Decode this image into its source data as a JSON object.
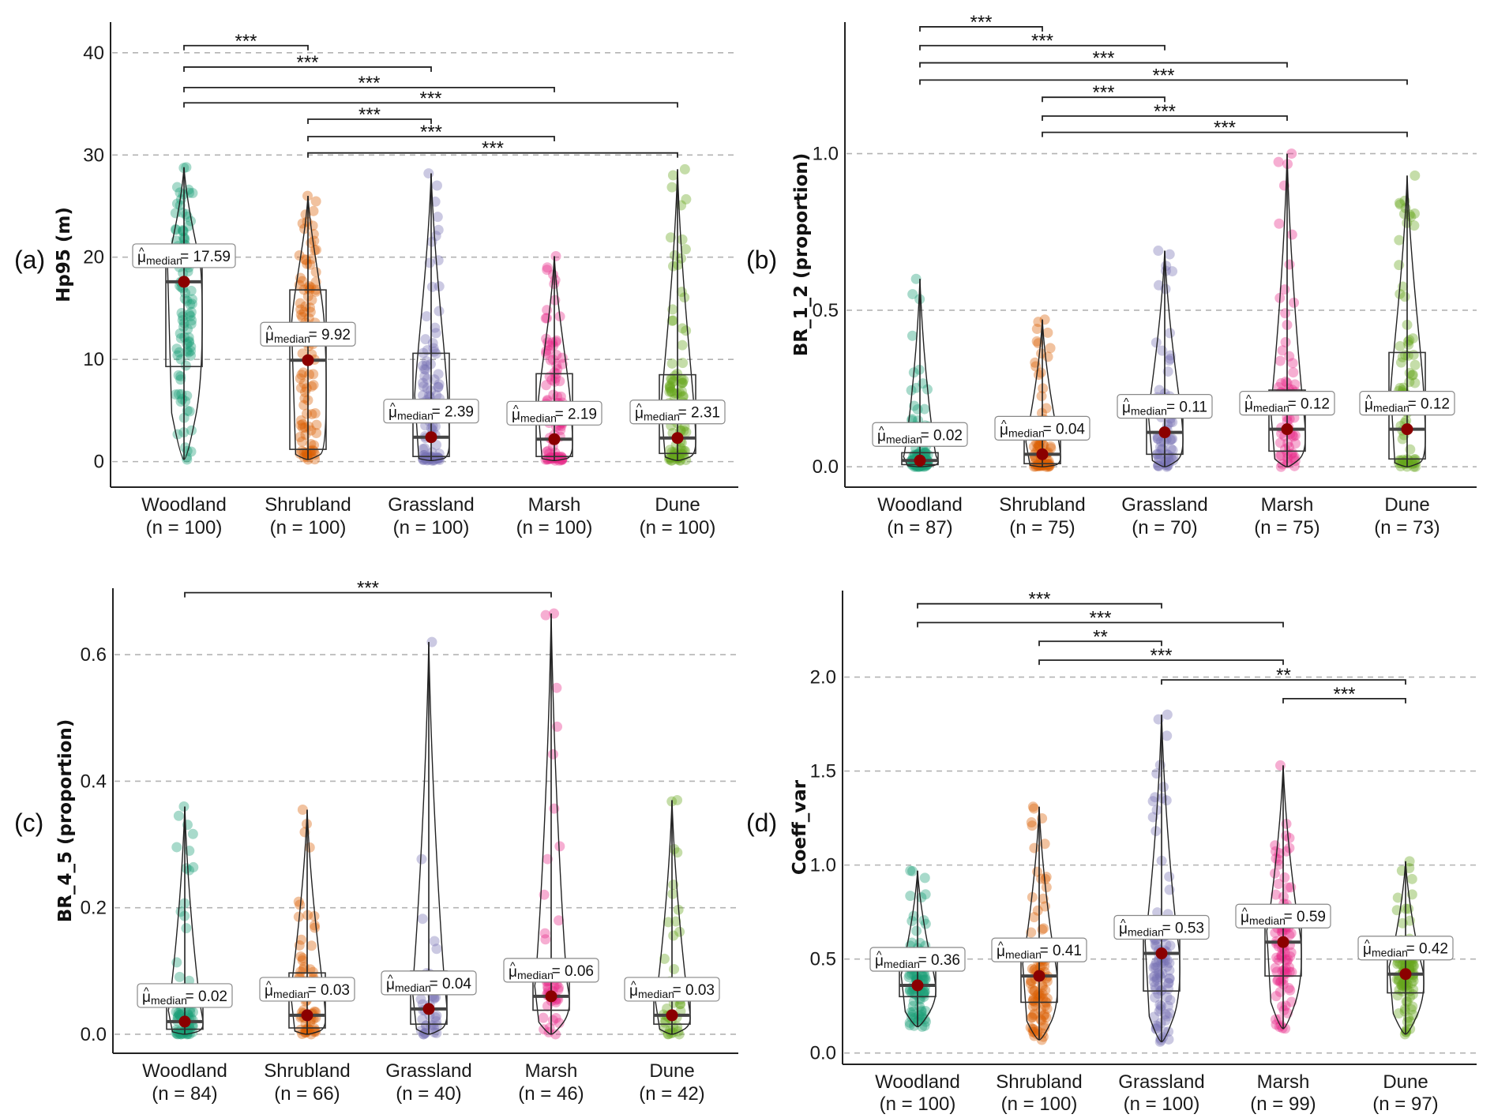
{
  "figure": {
    "panel_tags": [
      "(a)",
      "(b)",
      "(c)",
      "(d)"
    ],
    "label_prefix_symbol": "μ",
    "label_prefix_hat": "^",
    "label_prefix_sub": "median",
    "label_equals": "=",
    "colors": {
      "Woodland": "#1B9E77",
      "Shrubland": "#D95F02",
      "Grassland": "#7570B3",
      "Marsh": "#E7298A",
      "Dune": "#66A61E",
      "median_dot": "#8B0000",
      "grid": "#b3b3b3",
      "axis": "#222222"
    }
  },
  "chart_data": [
    {
      "id": "a",
      "type": "box-violin",
      "tag": "(a)",
      "ylabel": "Hp95 (m)",
      "ylim": [
        -2.5,
        43
      ],
      "yticks": [
        0,
        10,
        20,
        30,
        40
      ],
      "ytick_labels": [
        "0",
        "10",
        "20",
        "30",
        "40"
      ],
      "grid": "horizontal dashed",
      "categories": [
        "Woodland",
        "Shrubland",
        "Grassland",
        "Marsh",
        "Dune"
      ],
      "n": [
        100,
        100,
        100,
        100,
        100
      ],
      "category_labels": [
        "(n = 100)",
        "(n = 100)",
        "(n = 100)",
        "(n = 100)",
        "(n = 100)"
      ],
      "median": [
        17.59,
        9.92,
        2.39,
        2.19,
        2.31
      ],
      "median_labels": [
        "17.59",
        "9.92",
        "2.39",
        "2.19",
        "2.31"
      ],
      "q1": [
        9.3,
        1.2,
        0.5,
        0.5,
        0.8
      ],
      "q3": [
        20.6,
        16.8,
        10.6,
        8.6,
        8.5
      ],
      "min": [
        0.2,
        0.2,
        0.1,
        0.1,
        0.1
      ],
      "max": [
        28.8,
        26.0,
        28.2,
        20.1,
        28.6
      ],
      "comparisons": [
        {
          "from": "Woodland",
          "to": "Shrubland",
          "sig": "***"
        },
        {
          "from": "Woodland",
          "to": "Grassland",
          "sig": "***"
        },
        {
          "from": "Woodland",
          "to": "Marsh",
          "sig": "***"
        },
        {
          "from": "Woodland",
          "to": "Dune",
          "sig": "***"
        },
        {
          "from": "Shrubland",
          "to": "Grassland",
          "sig": "***"
        },
        {
          "from": "Shrubland",
          "to": "Marsh",
          "sig": "***"
        },
        {
          "from": "Shrubland",
          "to": "Dune",
          "sig": "***"
        }
      ],
      "comparison_levels": [
        40.7,
        38.6,
        36.6,
        35.1,
        33.5,
        31.8,
        30.2
      ]
    },
    {
      "id": "b",
      "type": "box-violin",
      "tag": "(b)",
      "ylabel": "BR_1_2 (proportion)",
      "ylim": [
        -0.065,
        1.42
      ],
      "yticks": [
        0.0,
        0.5,
        1.0
      ],
      "ytick_labels": [
        "0.0",
        "0.5",
        "1.0"
      ],
      "grid": "horizontal dashed",
      "categories": [
        "Woodland",
        "Shrubland",
        "Grassland",
        "Marsh",
        "Dune"
      ],
      "n": [
        87,
        75,
        70,
        75,
        73
      ],
      "category_labels": [
        "(n = 87)",
        "(n = 75)",
        "(n = 70)",
        "(n = 75)",
        "(n = 73)"
      ],
      "median": [
        0.02,
        0.04,
        0.11,
        0.12,
        0.12
      ],
      "median_labels": [
        "0.02",
        "0.04",
        "0.11",
        "0.12",
        "0.12"
      ],
      "q1": [
        0.007,
        0.01,
        0.04,
        0.05,
        0.025
      ],
      "q3": [
        0.045,
        0.12,
        0.23,
        0.245,
        0.365
      ],
      "min": [
        0.0,
        0.0,
        0.0,
        0.0,
        0.0
      ],
      "max": [
        0.6,
        0.47,
        0.69,
        1.0,
        0.93
      ],
      "comparisons": [
        {
          "from": "Woodland",
          "to": "Shrubland",
          "sig": "***"
        },
        {
          "from": "Woodland",
          "to": "Grassland",
          "sig": "***"
        },
        {
          "from": "Woodland",
          "to": "Marsh",
          "sig": "***"
        },
        {
          "from": "Woodland",
          "to": "Dune",
          "sig": "***"
        },
        {
          "from": "Shrubland",
          "to": "Grassland",
          "sig": "***"
        },
        {
          "from": "Shrubland",
          "to": "Marsh",
          "sig": "***"
        },
        {
          "from": "Shrubland",
          "to": "Dune",
          "sig": "***"
        }
      ],
      "comparison_levels": [
        1.405,
        1.345,
        1.29,
        1.235,
        1.18,
        1.12,
        1.068
      ]
    },
    {
      "id": "c",
      "type": "box-violin",
      "tag": "(c)",
      "ylabel": "BR_4_5 (proportion)",
      "ylim": [
        -0.03,
        0.705
      ],
      "yticks": [
        0.0,
        0.2,
        0.4,
        0.6
      ],
      "ytick_labels": [
        "0.0",
        "0.2",
        "0.4",
        "0.6"
      ],
      "grid": "horizontal dashed",
      "categories": [
        "Woodland",
        "Shrubland",
        "Grassland",
        "Marsh",
        "Dune"
      ],
      "n": [
        84,
        66,
        40,
        46,
        42
      ],
      "category_labels": [
        "(n = 84)",
        "(n = 66)",
        "(n = 40)",
        "(n = 46)",
        "(n = 42)"
      ],
      "median": [
        0.02,
        0.03,
        0.04,
        0.06,
        0.03
      ],
      "median_labels": [
        "0.02",
        "0.03",
        "0.04",
        "0.06",
        "0.03"
      ],
      "q1": [
        0.008,
        0.01,
        0.016,
        0.038,
        0.016
      ],
      "q3": [
        0.055,
        0.097,
        0.1,
        0.093,
        0.072
      ],
      "min": [
        0.0,
        0.0,
        0.0,
        0.0,
        0.0
      ],
      "max": [
        0.36,
        0.355,
        0.62,
        0.665,
        0.37
      ],
      "comparisons": [
        {
          "from": "Woodland",
          "to": "Marsh",
          "sig": "***"
        }
      ],
      "comparison_levels": [
        0.698
      ]
    },
    {
      "id": "d",
      "type": "box-violin",
      "tag": "(d)",
      "ylabel": "Coeff_var",
      "ylim": [
        -0.06,
        2.46
      ],
      "yticks": [
        0.0,
        0.5,
        1.0,
        1.5,
        2.0
      ],
      "ytick_labels": [
        "0.0",
        "0.5",
        "1.0",
        "1.5",
        "2.0"
      ],
      "grid": "horizontal dashed",
      "categories": [
        "Woodland",
        "Shrubland",
        "Grassland",
        "Marsh",
        "Dune"
      ],
      "n": [
        100,
        100,
        100,
        99,
        97
      ],
      "category_labels": [
        "(n = 100)",
        "(n = 100)",
        "(n = 100)",
        "(n = 99)",
        "(n = 97)"
      ],
      "median": [
        0.36,
        0.41,
        0.53,
        0.59,
        0.42
      ],
      "median_labels": [
        "0.36",
        "0.41",
        "0.53",
        "0.59",
        "0.42"
      ],
      "q1": [
        0.3,
        0.27,
        0.33,
        0.41,
        0.32
      ],
      "q3": [
        0.47,
        0.54,
        0.66,
        0.71,
        0.5
      ],
      "min": [
        0.14,
        0.07,
        0.06,
        0.13,
        0.1
      ],
      "max": [
        0.97,
        1.31,
        1.8,
        1.53,
        1.02
      ],
      "comparisons": [
        {
          "from": "Woodland",
          "to": "Grassland",
          "sig": "***"
        },
        {
          "from": "Woodland",
          "to": "Marsh",
          "sig": "***"
        },
        {
          "from": "Shrubland",
          "to": "Grassland",
          "sig": "**"
        },
        {
          "from": "Shrubland",
          "to": "Marsh",
          "sig": "***"
        },
        {
          "from": "Grassland",
          "to": "Dune",
          "sig": "**"
        },
        {
          "from": "Marsh",
          "to": "Dune",
          "sig": "***"
        }
      ],
      "comparison_levels": [
        2.39,
        2.29,
        2.19,
        2.09,
        1.985,
        1.885
      ]
    }
  ]
}
